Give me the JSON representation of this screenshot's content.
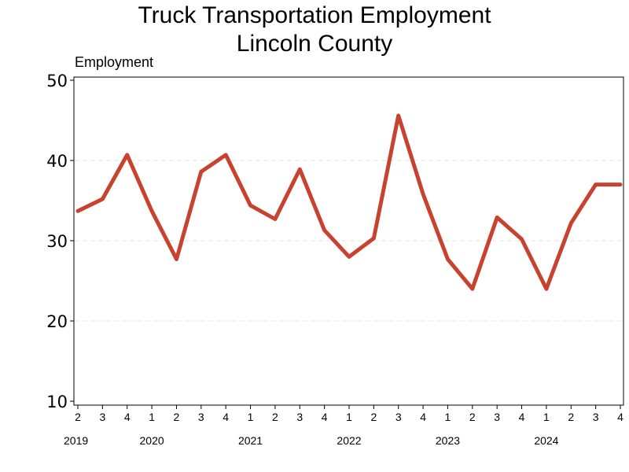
{
  "chart_data": {
    "type": "line",
    "title_lines": [
      "Truck Transportation Employment",
      "Lincoln County"
    ],
    "ylabel": "Employment",
    "xlabel": "",
    "ylim": [
      10,
      50
    ],
    "yticks": [
      10,
      20,
      30,
      40,
      50
    ],
    "grid": "horizontal dashed",
    "line_color": "#c8432f",
    "quarters": [
      "2",
      "3",
      "4",
      "1",
      "2",
      "3",
      "4",
      "1",
      "2",
      "3",
      "4",
      "1",
      "2",
      "3",
      "4",
      "1",
      "2",
      "3",
      "4",
      "1",
      "2",
      "3",
      "4"
    ],
    "years": [
      {
        "label": "2019",
        "quarter_index": 0
      },
      {
        "label": "2020",
        "quarter_index": 3
      },
      {
        "label": "2021",
        "quarter_index": 7
      },
      {
        "label": "2022",
        "quarter_index": 11
      },
      {
        "label": "2023",
        "quarter_index": 15
      },
      {
        "label": "2024",
        "quarter_index": 19
      }
    ],
    "series": [
      {
        "values": [
          33.7,
          35.2,
          40.7,
          33.7,
          27.7,
          38.6,
          40.7,
          34.4,
          32.7,
          38.9,
          31.3,
          28.0,
          30.3,
          45.6,
          35.8,
          27.7,
          24.0,
          32.9,
          30.2,
          24.0,
          32.2,
          37.0,
          37.0
        ]
      }
    ]
  }
}
